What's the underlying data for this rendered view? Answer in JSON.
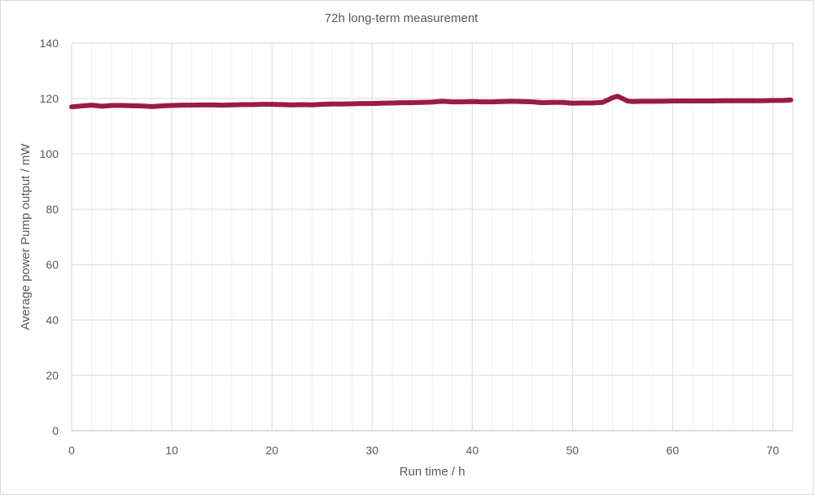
{
  "chart_data": {
    "type": "line",
    "title": "72h long-term measurement",
    "xlabel": "Run time / h",
    "ylabel": "Average power Pump output / mW",
    "xlim": [
      0,
      72
    ],
    "ylim": [
      0,
      140
    ],
    "xticks": [
      0,
      10,
      20,
      30,
      40,
      50,
      60,
      70
    ],
    "yticks": [
      0,
      20,
      40,
      60,
      80,
      100,
      120,
      140
    ],
    "grid": true,
    "legend": "none",
    "line_color": "#9b1b45",
    "series": [
      {
        "x": [
          0,
          1,
          2,
          3,
          4,
          5,
          6,
          7,
          8,
          9,
          10,
          11,
          12,
          13,
          14,
          15,
          16,
          17,
          18,
          19,
          20,
          21,
          22,
          23,
          24,
          25,
          26,
          27,
          28,
          29,
          30,
          31,
          32,
          33,
          34,
          35,
          36,
          37,
          38,
          39,
          40,
          41,
          42,
          43,
          44,
          45,
          46,
          47,
          48,
          49,
          50,
          51,
          52,
          53,
          53.5,
          54,
          54.5,
          55,
          55.5,
          56,
          57,
          58,
          59,
          60,
          61,
          62,
          63,
          64,
          65,
          66,
          67,
          68,
          69,
          70,
          71,
          71.8
        ],
        "values": [
          117,
          117.3,
          117.6,
          117.2,
          117.5,
          117.5,
          117.4,
          117.3,
          117.1,
          117.3,
          117.5,
          117.6,
          117.6,
          117.7,
          117.7,
          117.6,
          117.7,
          117.8,
          117.8,
          117.9,
          117.9,
          117.8,
          117.7,
          117.8,
          117.7,
          117.9,
          118,
          118,
          118.1,
          118.2,
          118.2,
          118.3,
          118.4,
          118.5,
          118.5,
          118.6,
          118.7,
          119,
          118.8,
          118.8,
          118.9,
          118.8,
          118.8,
          118.9,
          119,
          118.9,
          118.8,
          118.5,
          118.6,
          118.6,
          118.3,
          118.4,
          118.4,
          118.6,
          119.4,
          120.3,
          120.8,
          120,
          119.1,
          118.9,
          119,
          119,
          119,
          119.1,
          119.1,
          119.1,
          119.1,
          119.1,
          119.2,
          119.2,
          119.2,
          119.2,
          119.2,
          119.3,
          119.3,
          119.5
        ]
      }
    ]
  }
}
